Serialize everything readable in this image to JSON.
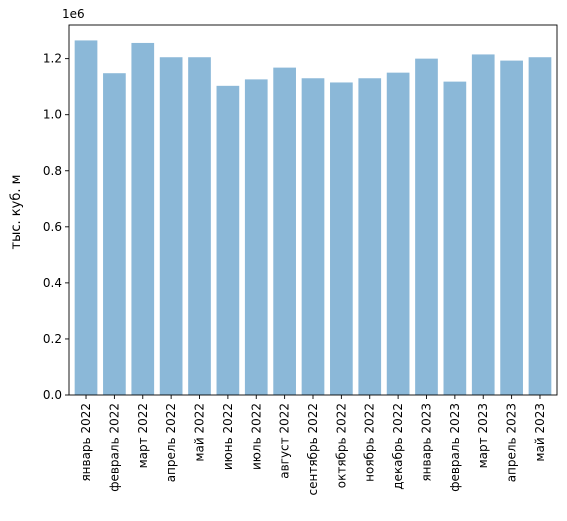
{
  "chart_data": {
    "type": "bar",
    "title": "",
    "xlabel": "",
    "ylabel": "тыс. куб. м",
    "offset_text": "1e6",
    "categories": [
      "январь 2022",
      "февраль 2022",
      "март 2022",
      "апрель 2022",
      "май 2022",
      "июнь 2022",
      "июль 2022",
      "август 2022",
      "сентябрь 2022",
      "октябрь 2022",
      "ноябрь 2022",
      "декабрь 2022",
      "январь 2023",
      "февраль 2023",
      "март 2023",
      "апрель 2023",
      "май 2023"
    ],
    "values": [
      1265000,
      1148000,
      1256000,
      1205000,
      1205000,
      1103000,
      1126000,
      1168000,
      1130000,
      1115000,
      1130000,
      1150000,
      1200000,
      1118000,
      1215000,
      1193000,
      1205000
    ],
    "ylim": [
      0,
      1320000
    ],
    "yticks": [
      0,
      200000,
      400000,
      600000,
      800000,
      1000000,
      1200000
    ],
    "ytick_labels": [
      "0.0",
      "0.2",
      "0.4",
      "0.6",
      "0.8",
      "1.0",
      "1.2"
    ],
    "bar_color": "#8bb8d8",
    "grid": false,
    "legend": "none"
  }
}
